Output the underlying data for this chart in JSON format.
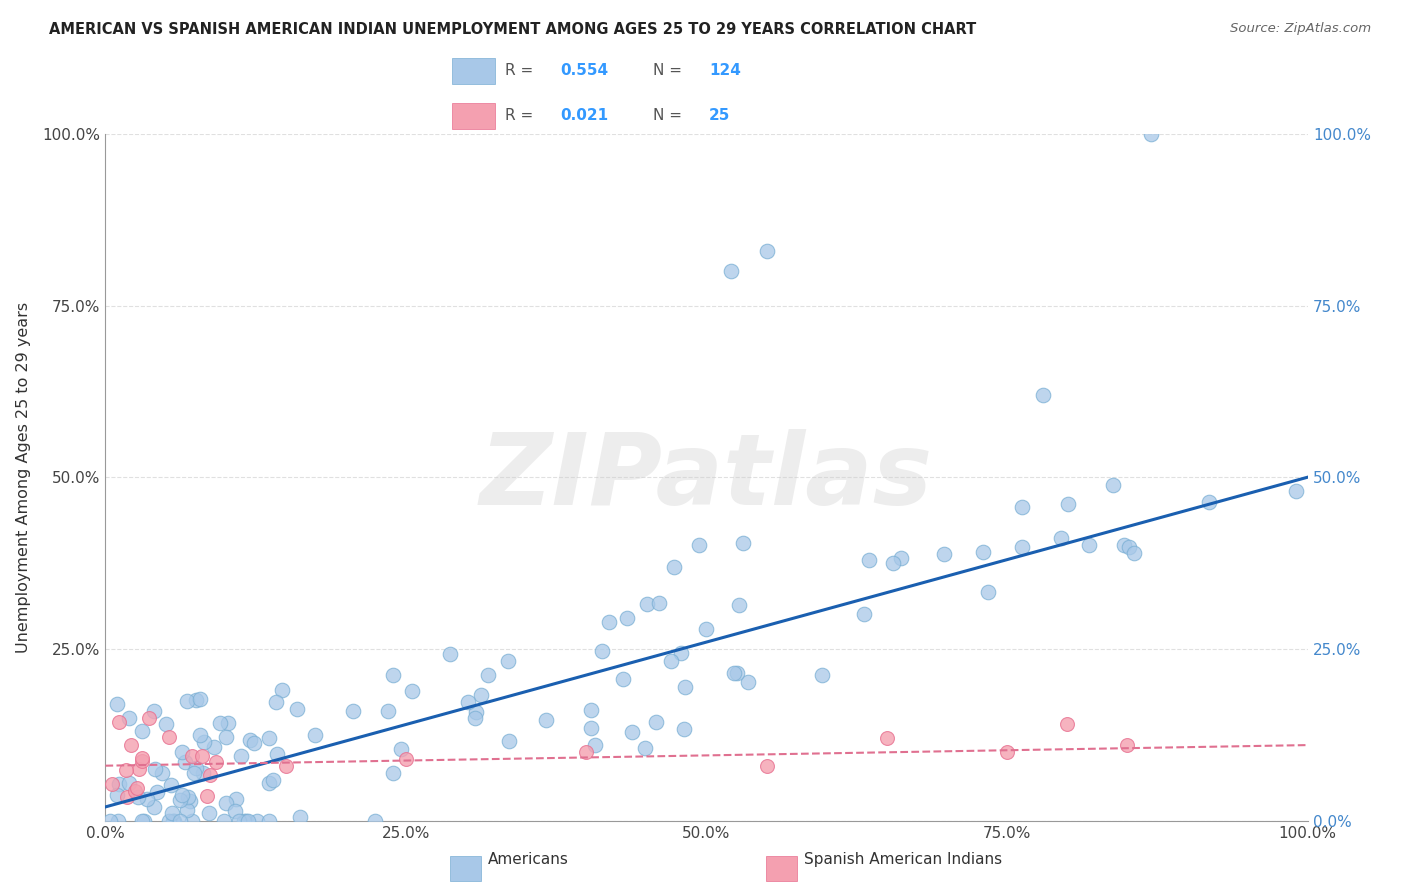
{
  "title": "AMERICAN VS SPANISH AMERICAN INDIAN UNEMPLOYMENT AMONG AGES 25 TO 29 YEARS CORRELATION CHART",
  "source": "Source: ZipAtlas.com",
  "ylabel": "Unemployment Among Ages 25 to 29 years",
  "xlim": [
    0,
    1.0
  ],
  "ylim": [
    0,
    1.0
  ],
  "xticklabels": [
    "0.0%",
    "25.0%",
    "50.0%",
    "75.0%",
    "100.0%"
  ],
  "left_yticklabels": [
    "",
    "25.0%",
    "50.0%",
    "75.0%",
    "100.0%"
  ],
  "right_yticklabels": [
    "0.0%",
    "25.0%",
    "50.0%",
    "75.0%",
    "100.0%"
  ],
  "americans_R": 0.554,
  "americans_N": 124,
  "spanish_R": 0.021,
  "spanish_N": 25,
  "americans_color": "#a8c8e8",
  "americans_edge_color": "#7aafd4",
  "spanish_color": "#f4a0b0",
  "spanish_edge_color": "#e87090",
  "americans_line_color": "#1a5fb0",
  "spanish_line_color": "#e07090",
  "watermark": "ZIPatlas",
  "background_color": "#ffffff",
  "title_color": "#222222",
  "source_color": "#666666",
  "axis_color": "#999999",
  "grid_color": "#dddddd",
  "right_tick_color": "#4488cc",
  "legend_text_color": "#555555",
  "legend_value_color": "#3399ff"
}
